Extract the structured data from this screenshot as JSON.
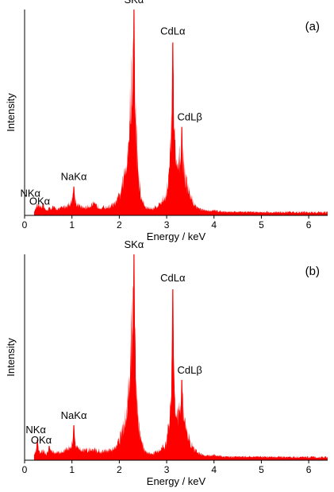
{
  "accent_color": "#ff0000",
  "chart_data": [
    {
      "type": "area",
      "panel_label": "(a)",
      "xlabel": "Energy / keV",
      "ylabel": "Intensity",
      "xlim": [
        0,
        6.4
      ],
      "ylim": [
        0,
        1
      ],
      "xticks": [
        0,
        1,
        2,
        3,
        4,
        5,
        6
      ],
      "y_tick_labels": false,
      "color": "#ff0000",
      "baseline": 0.015,
      "peaks": [
        {
          "label": "NKα",
          "energy": 0.39,
          "height": 0.06
        },
        {
          "label": "OKα",
          "energy": 0.52,
          "height": 0.04
        },
        {
          "label": "NaKα",
          "energy": 1.04,
          "height": 0.14
        },
        {
          "label": "SKα",
          "energy": 2.31,
          "height": 1.0
        },
        {
          "label": "CdLα",
          "energy": 3.13,
          "height": 0.84
        },
        {
          "label": "CdLβ",
          "energy": 3.32,
          "height": 0.43
        }
      ],
      "x": [
        0.2,
        0.26,
        0.3,
        0.39,
        0.45,
        0.52,
        0.6,
        0.7,
        0.8,
        0.9,
        0.98,
        1.04,
        1.1,
        1.2,
        1.3,
        1.45,
        1.6,
        1.75,
        1.9,
        2.0,
        2.08,
        2.15,
        2.2,
        2.25,
        2.28,
        2.31,
        2.34,
        2.38,
        2.45,
        2.55,
        2.7,
        2.85,
        2.98,
        3.05,
        3.1,
        3.13,
        3.16,
        3.2,
        3.25,
        3.3,
        3.32,
        3.35,
        3.4,
        3.5,
        3.6,
        3.7,
        3.8,
        4.0,
        4.3,
        4.7,
        5.2,
        5.8,
        6.4
      ],
      "y": [
        0.02,
        0.06,
        0.05,
        0.06,
        0.03,
        0.04,
        0.05,
        0.04,
        0.05,
        0.06,
        0.08,
        0.14,
        0.07,
        0.05,
        0.05,
        0.07,
        0.05,
        0.05,
        0.07,
        0.12,
        0.2,
        0.32,
        0.5,
        0.75,
        0.9,
        1.0,
        0.7,
        0.35,
        0.12,
        0.05,
        0.04,
        0.07,
        0.12,
        0.25,
        0.55,
        0.84,
        0.6,
        0.28,
        0.3,
        0.4,
        0.43,
        0.35,
        0.22,
        0.12,
        0.06,
        0.04,
        0.03,
        0.03,
        0.02,
        0.02,
        0.015,
        0.012,
        0.01
      ]
    },
    {
      "type": "area",
      "panel_label": "(b)",
      "xlabel": "Energy / keV",
      "ylabel": "Intensity",
      "xlim": [
        0,
        6.4
      ],
      "ylim": [
        0,
        1
      ],
      "xticks": [
        0,
        1,
        2,
        3,
        4,
        5,
        6
      ],
      "y_tick_labels": false,
      "color": "#ff0000",
      "baseline": 0.015,
      "peaks": [
        {
          "label": "NKα",
          "energy": 0.27,
          "height": 0.1
        },
        {
          "label": "OKα",
          "energy": 0.52,
          "height": 0.07
        },
        {
          "label": "NaKα",
          "energy": 1.04,
          "height": 0.17
        },
        {
          "label": "SKα",
          "energy": 2.31,
          "height": 1.0
        },
        {
          "label": "CdLα",
          "energy": 3.13,
          "height": 0.83
        },
        {
          "label": "CdLβ",
          "energy": 3.32,
          "height": 0.39
        }
      ],
      "x": [
        0.2,
        0.27,
        0.32,
        0.4,
        0.46,
        0.52,
        0.6,
        0.7,
        0.8,
        0.9,
        0.98,
        1.04,
        1.1,
        1.2,
        1.3,
        1.45,
        1.6,
        1.75,
        1.9,
        2.0,
        2.08,
        2.15,
        2.2,
        2.25,
        2.28,
        2.31,
        2.34,
        2.38,
        2.45,
        2.55,
        2.7,
        2.85,
        2.98,
        3.05,
        3.1,
        3.13,
        3.16,
        3.2,
        3.25,
        3.3,
        3.32,
        3.35,
        3.4,
        3.5,
        3.6,
        3.7,
        3.8,
        4.0,
        4.3,
        4.7,
        5.2,
        5.8,
        6.4
      ],
      "y": [
        0.03,
        0.1,
        0.05,
        0.06,
        0.04,
        0.07,
        0.05,
        0.05,
        0.05,
        0.07,
        0.09,
        0.17,
        0.08,
        0.07,
        0.06,
        0.07,
        0.05,
        0.06,
        0.07,
        0.12,
        0.2,
        0.3,
        0.45,
        0.72,
        0.88,
        1.0,
        0.68,
        0.33,
        0.12,
        0.05,
        0.04,
        0.06,
        0.1,
        0.22,
        0.5,
        0.83,
        0.55,
        0.26,
        0.28,
        0.36,
        0.39,
        0.32,
        0.2,
        0.11,
        0.06,
        0.04,
        0.03,
        0.03,
        0.02,
        0.02,
        0.015,
        0.012,
        0.01
      ]
    }
  ]
}
